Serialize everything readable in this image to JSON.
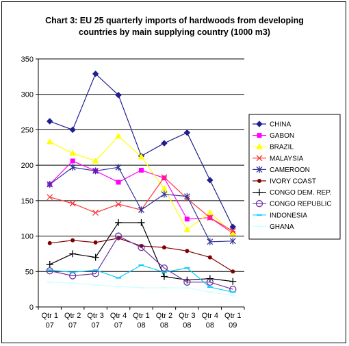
{
  "chart_data": {
    "type": "line",
    "title": "Chart 3: EU 25 quarterly imports of hardwoods from developing countries by main supplying country (1000 m3)",
    "title_lines": [
      "Chart 3: EU 25 quarterly imports of hardwoods from developing",
      "countries by main supplying country (1000 m3)"
    ],
    "xlabel": "",
    "ylabel": "",
    "categories": [
      [
        "Qtr 1",
        "07"
      ],
      [
        "Qtr 2",
        "07"
      ],
      [
        "Qtr 3",
        "07"
      ],
      [
        "Qtr 4",
        "07"
      ],
      [
        "Qtr 1",
        "08"
      ],
      [
        "Qtr 2",
        "08"
      ],
      [
        "Qtr 3",
        "08"
      ],
      [
        "Qtr 4",
        "08"
      ],
      [
        "Qtr 1",
        "09"
      ]
    ],
    "ylim": [
      0,
      350
    ],
    "yticks": [
      "0",
      "50",
      "100",
      "150",
      "200",
      "250",
      "300",
      "350"
    ],
    "grid": true,
    "legend": "right",
    "series": [
      {
        "name": "CHINA",
        "color": "#1f1f8f",
        "marker": "diamond",
        "values": [
          262,
          250,
          329,
          299,
          213,
          231,
          246,
          179,
          113
        ]
      },
      {
        "name": "GABON",
        "color": "#ff00ff",
        "marker": "square",
        "values": [
          173,
          206,
          192,
          176,
          193,
          182,
          124,
          126,
          104
        ]
      },
      {
        "name": "BRAZIL",
        "color": "#ffff00",
        "marker": "triangle",
        "values": [
          233,
          217,
          206,
          241,
          212,
          167,
          109,
          133,
          104
        ]
      },
      {
        "name": "MALAYSIA",
        "color": "#ff3333",
        "marker": "x",
        "values": [
          155,
          146,
          133,
          145,
          137,
          183,
          153,
          126,
          107
        ]
      },
      {
        "name": "CAMEROON",
        "color": "#333399",
        "marker": "asterisk",
        "values": [
          173,
          197,
          192,
          197,
          137,
          159,
          156,
          92,
          93
        ]
      },
      {
        "name": "IVORY COAST",
        "color": "#800000",
        "marker": "dot",
        "values": [
          90,
          94,
          91,
          97,
          86,
          84,
          79,
          70,
          50
        ]
      },
      {
        "name": "CONGO DEM. REP.",
        "color": "#000000",
        "marker": "plus",
        "values": [
          60,
          75,
          70,
          119,
          119,
          43,
          38,
          40,
          36
        ]
      },
      {
        "name": "CONGO REPUBLIC",
        "color": "#7030a0",
        "marker": "circle",
        "values": [
          51,
          44,
          47,
          100,
          84,
          55,
          35,
          35,
          25
        ]
      },
      {
        "name": "INDONESIA",
        "color": "#00ccff",
        "marker": "dash",
        "values": [
          52,
          49,
          52,
          41,
          59,
          49,
          55,
          28,
          21
        ]
      },
      {
        "name": "GHANA",
        "color": "#ccffff",
        "marker": "dash",
        "values": [
          35,
          34,
          31,
          29,
          27,
          27,
          27,
          21,
          16
        ]
      }
    ]
  }
}
